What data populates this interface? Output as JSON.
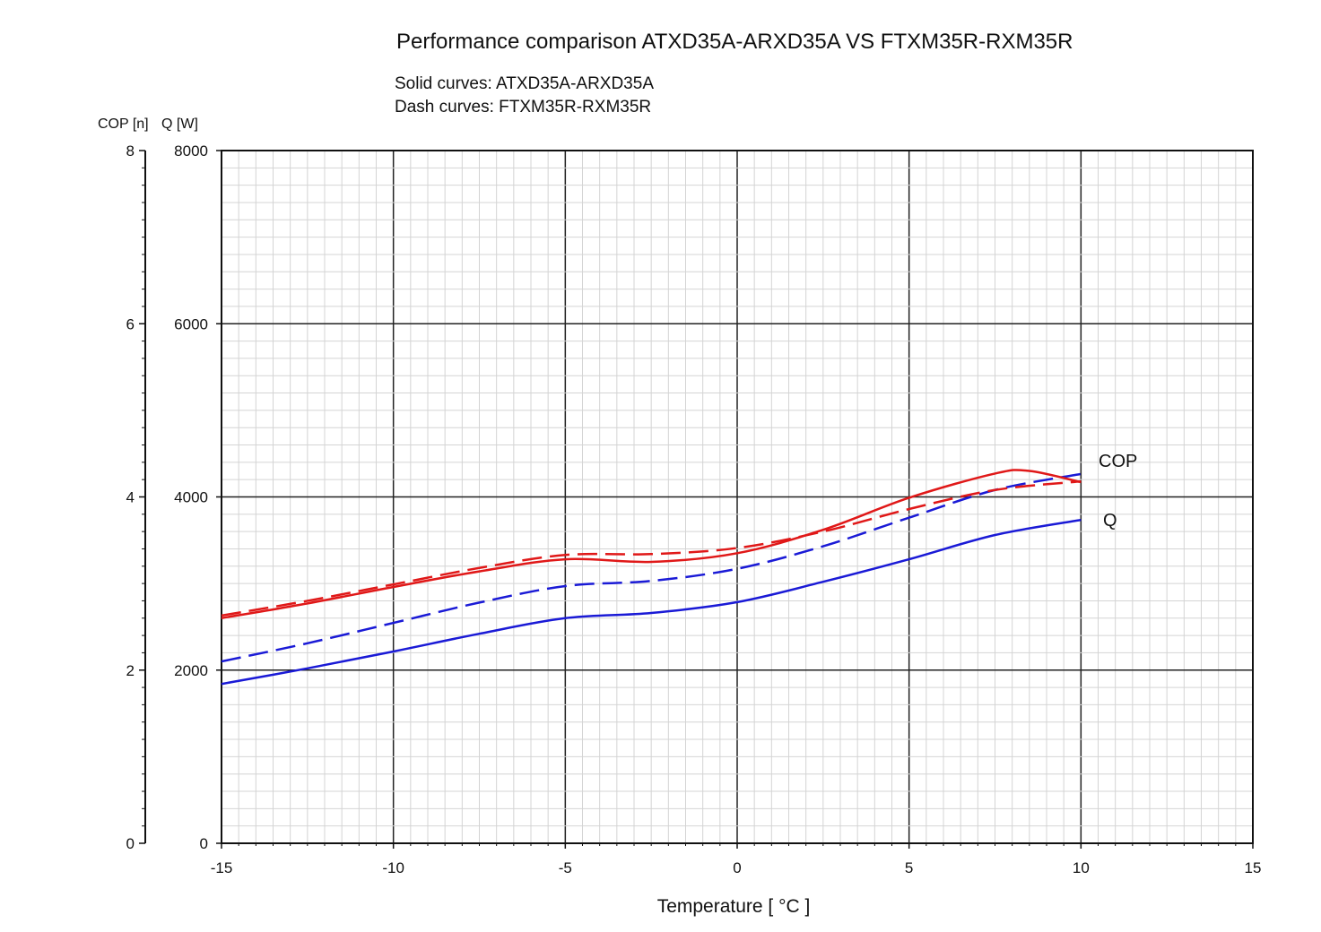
{
  "chart_data": {
    "type": "line",
    "title": "Performance comparison ATXD35A-ARXD35A VS FTXM35R-RXM35R",
    "subtitle_lines": [
      "Solid curves: ATXD35A-ARXD35A",
      "Dash curves: FTXM35R-RXM35R"
    ],
    "xlabel": "Temperature [ °C ]",
    "ylabel_left": "COP [n]",
    "ylabel_right": "Q [W]",
    "xlim": [
      -15,
      15
    ],
    "ylim_q": [
      0,
      8000
    ],
    "ylim_cop": [
      0,
      8
    ],
    "x_ticks": [
      "-15",
      "-10",
      "-5",
      "0",
      "5",
      "10",
      "15"
    ],
    "q_ticks": [
      "0",
      "2000",
      "4000",
      "6000",
      "8000"
    ],
    "cop_ticks": [
      "0",
      "2",
      "4",
      "6",
      "8"
    ],
    "grid": true,
    "curve_labels": {
      "cop": "COP",
      "q": "Q"
    },
    "series": [
      {
        "name": "Q ATXD35A-ARXD35A",
        "axis": "q",
        "style": "solid",
        "color": "#1a1ad6",
        "x": [
          -15,
          -12.5,
          -10,
          -7.5,
          -5,
          -2.5,
          0,
          2.5,
          5,
          7.5,
          10
        ],
        "y": [
          1840,
          2020,
          2215,
          2420,
          2600,
          2660,
          2785,
          3020,
          3280,
          3560,
          3735
        ]
      },
      {
        "name": "Q FTXM35R-RXM35R",
        "axis": "q",
        "style": "dashed",
        "color": "#1a1ad6",
        "x": [
          -15,
          -12.5,
          -10,
          -7.5,
          -5,
          -2.5,
          0,
          2.5,
          5,
          7.5,
          10
        ],
        "y": [
          2100,
          2310,
          2545,
          2780,
          2970,
          3030,
          3170,
          3430,
          3760,
          4080,
          4265
        ]
      },
      {
        "name": "COP ATXD35A-ARXD35A",
        "axis": "cop",
        "style": "solid",
        "color": "#e01818",
        "x": [
          -15,
          -12.5,
          -10,
          -7.5,
          -5,
          -2.5,
          0,
          2.5,
          5,
          7.5,
          8.5,
          10
        ],
        "y": [
          2.6,
          2.77,
          2.96,
          3.14,
          3.28,
          3.25,
          3.35,
          3.62,
          3.99,
          4.27,
          4.3,
          4.17
        ]
      },
      {
        "name": "COP FTXM35R-RXM35R",
        "axis": "cop",
        "style": "dashed",
        "color": "#e01818",
        "x": [
          -15,
          -12.5,
          -10,
          -7.5,
          -5,
          -2.5,
          0,
          2.5,
          5,
          7.5,
          10
        ],
        "y": [
          2.63,
          2.8,
          2.99,
          3.18,
          3.33,
          3.34,
          3.41,
          3.6,
          3.86,
          4.08,
          4.18
        ]
      }
    ]
  }
}
